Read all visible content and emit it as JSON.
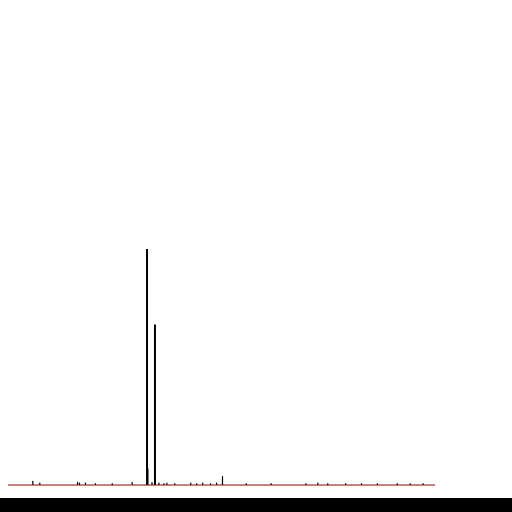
{
  "chart_data": {
    "type": "bar",
    "title": "",
    "xlabel": "",
    "ylabel": "",
    "xlim": [
      0,
      430
    ],
    "ylim": [
      0,
      400
    ],
    "grid": false,
    "legend": "none",
    "colors": {
      "peak": "#000000",
      "baseline": "#8b0000",
      "bottom_bar": "#000000",
      "background": "#ffffff"
    },
    "peaks": [
      {
        "x": 140,
        "y": 400
      },
      {
        "x": 148,
        "y": 272
      },
      {
        "x": 216,
        "y": 15
      },
      {
        "x": 140.5,
        "y": 28
      },
      {
        "x": 25,
        "y": 7
      },
      {
        "x": 32,
        "y": 4
      },
      {
        "x": 70,
        "y": 5
      },
      {
        "x": 72,
        "y": 4
      },
      {
        "x": 78,
        "y": 4
      },
      {
        "x": 88,
        "y": 3
      },
      {
        "x": 105,
        "y": 3
      },
      {
        "x": 125,
        "y": 5
      },
      {
        "x": 145,
        "y": 5
      },
      {
        "x": 152,
        "y": 4
      },
      {
        "x": 157,
        "y": 3
      },
      {
        "x": 160,
        "y": 4
      },
      {
        "x": 168,
        "y": 3
      },
      {
        "x": 184,
        "y": 4
      },
      {
        "x": 190,
        "y": 3
      },
      {
        "x": 196,
        "y": 4
      },
      {
        "x": 204,
        "y": 3
      },
      {
        "x": 210,
        "y": 4
      },
      {
        "x": 240,
        "y": 3
      },
      {
        "x": 265,
        "y": 3
      },
      {
        "x": 300,
        "y": 3
      },
      {
        "x": 312,
        "y": 4
      },
      {
        "x": 322,
        "y": 3
      },
      {
        "x": 340,
        "y": 3
      },
      {
        "x": 356,
        "y": 3
      },
      {
        "x": 372,
        "y": 3
      },
      {
        "x": 392,
        "y": 3
      },
      {
        "x": 405,
        "y": 3
      },
      {
        "x": 418,
        "y": 3
      }
    ]
  }
}
